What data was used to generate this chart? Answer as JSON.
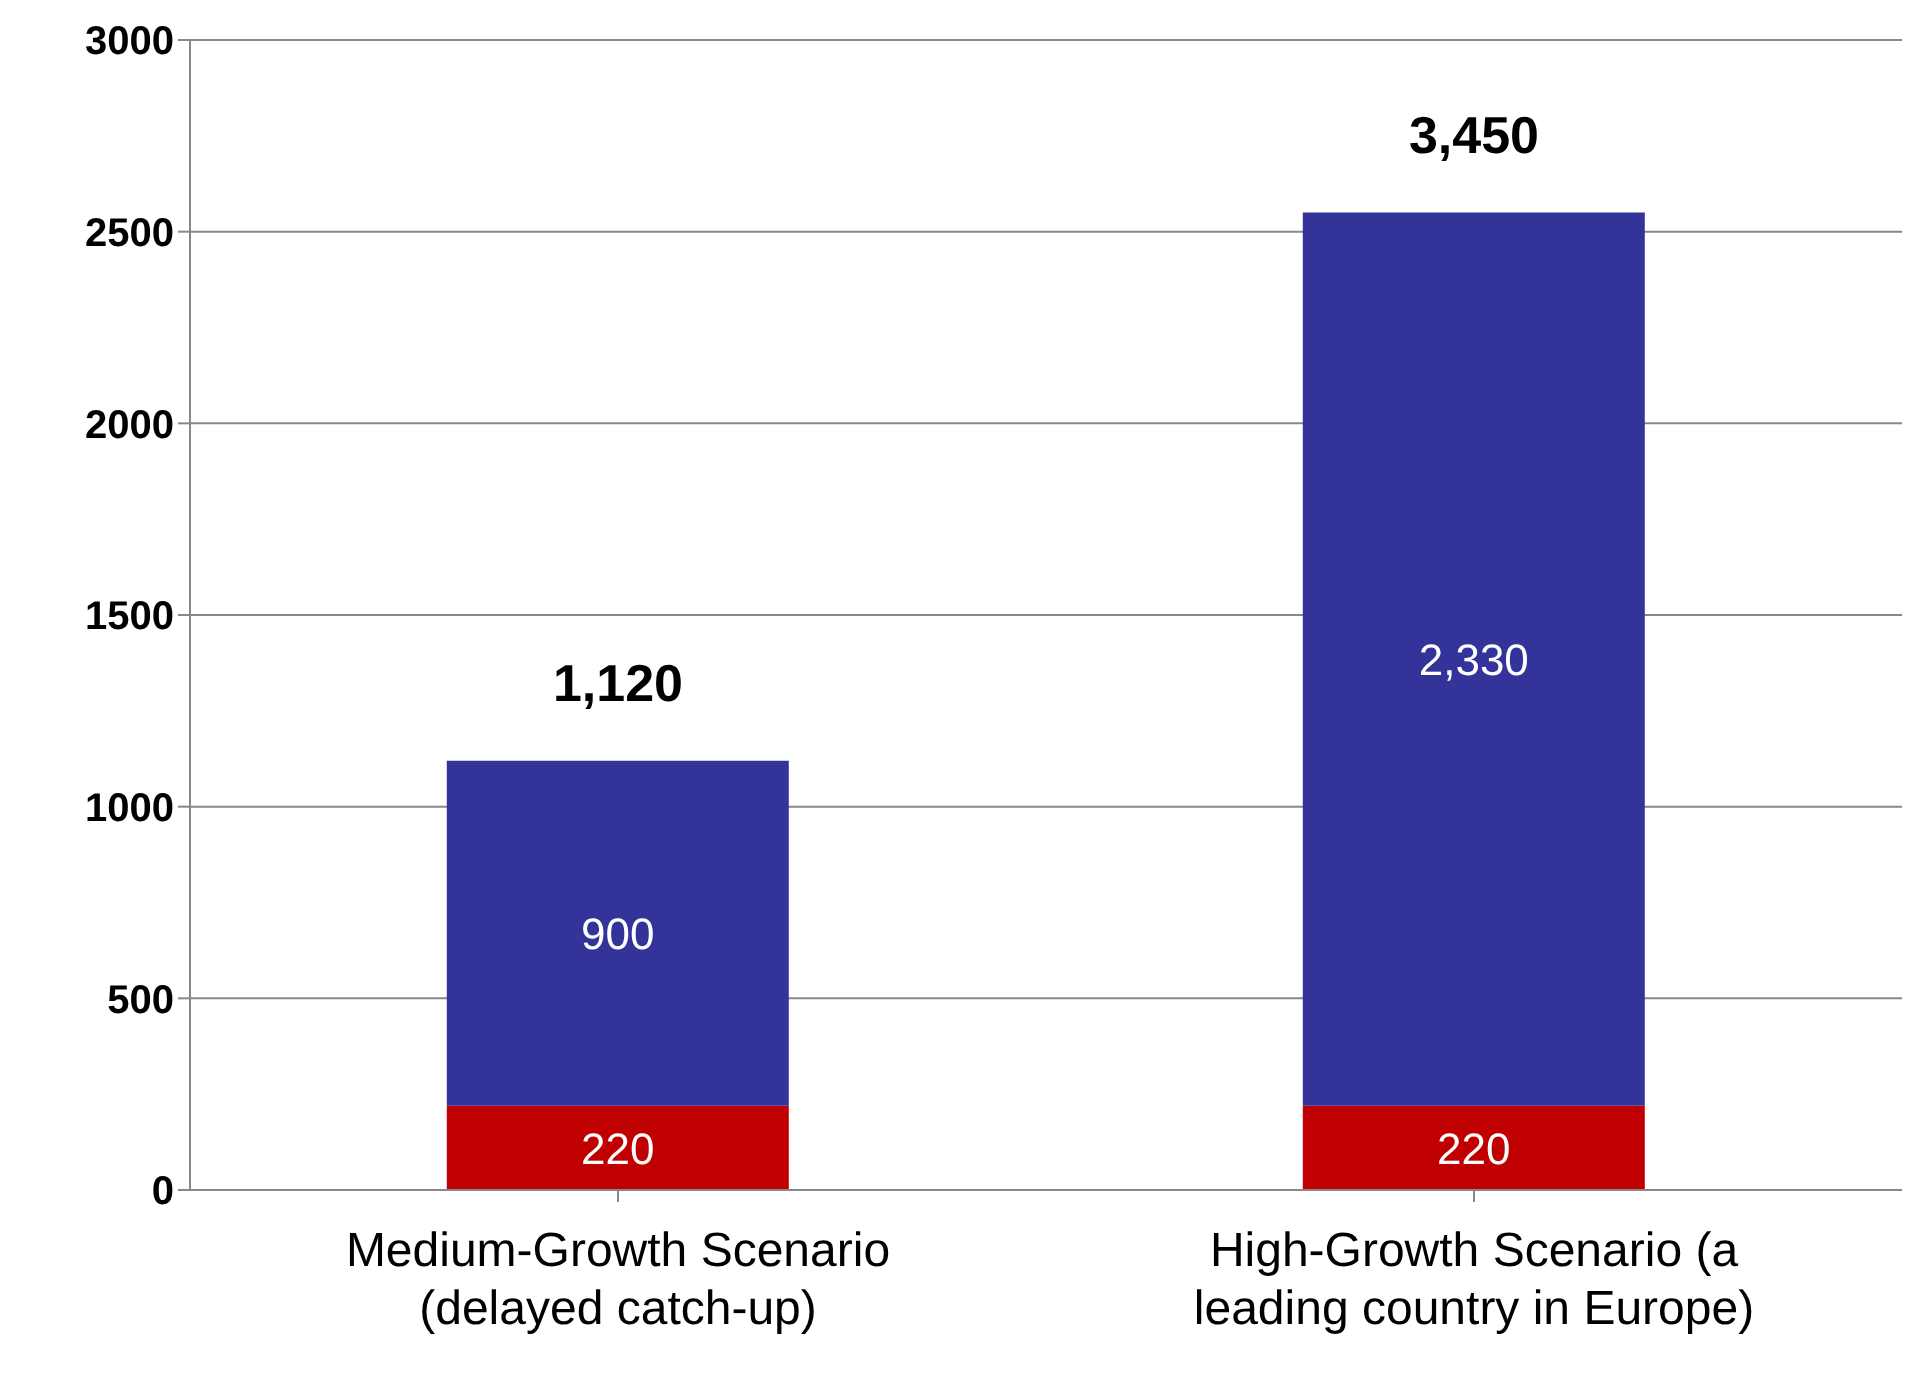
{
  "chart_data": {
    "type": "bar",
    "stacked": true,
    "categories": [
      "Medium-Growth Scenario (delayed catch-up)",
      "High-Growth Scenario (a leading country in Europe)"
    ],
    "series": [
      {
        "color": "#c00000",
        "values": [
          220,
          220
        ],
        "value_labels": [
          "220",
          "220"
        ]
      },
      {
        "color": "#333399",
        "values": [
          900,
          2330
        ],
        "value_labels": [
          "900",
          "2,330"
        ]
      }
    ],
    "annotations": [
      {
        "text": "1,120",
        "x": "Medium-Growth Scenario (delayed catch-up)",
        "y": 1120
      },
      {
        "text": "3,450",
        "x": "High-Growth Scenario (a leading country in Europe)",
        "y": 2550
      }
    ],
    "ylim": [
      0,
      3000
    ],
    "yticks": [
      0,
      500,
      1000,
      1500,
      2000,
      2500,
      3000
    ],
    "grid": "y"
  }
}
